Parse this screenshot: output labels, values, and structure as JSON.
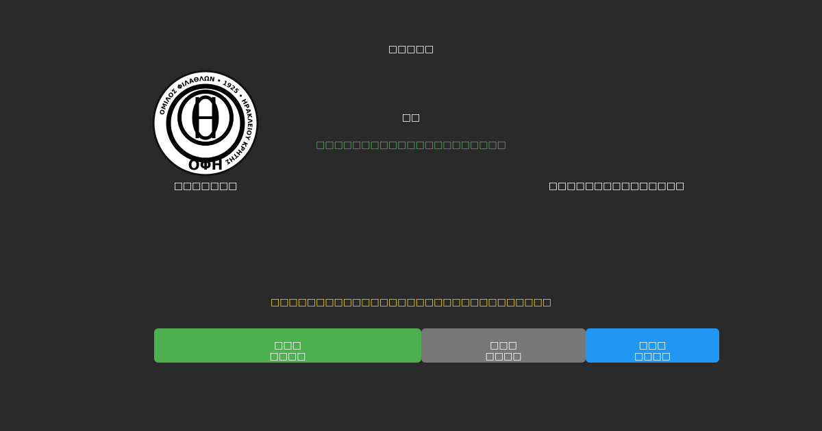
{
  "header": {
    "title": "□□□□□"
  },
  "match": {
    "score": "□□",
    "status": "□□□□□□□□□□□□□□□□□□□□□",
    "home_team": "□□□□□□□",
    "away_team": "□□□□□□□□□□□□□□□",
    "notice": "□□□□□□□□□□□□□□□□□□□□□□□□□□□□□□□"
  },
  "logo": {
    "ring_text": "ΟΜΙΛΟΣ ΦΙΛΑΘΛΩΝ • 1925 • ΗΡΑΚΛΕΙΟΥ ΚΡΗΤΗΣ",
    "initials": "ΟΦΗ"
  },
  "buttons": [
    {
      "line1": "□□□",
      "line2": "□□□□",
      "color": "#4caf50"
    },
    {
      "line1": "□□□",
      "line2": "□□□□",
      "color": "#777777"
    },
    {
      "line1": "□□□",
      "line2": "□□□□",
      "color": "#2196f3"
    }
  ],
  "colors": {
    "status": "#4caf50",
    "notice": "#ffd600",
    "background": "#2a2a2a"
  }
}
